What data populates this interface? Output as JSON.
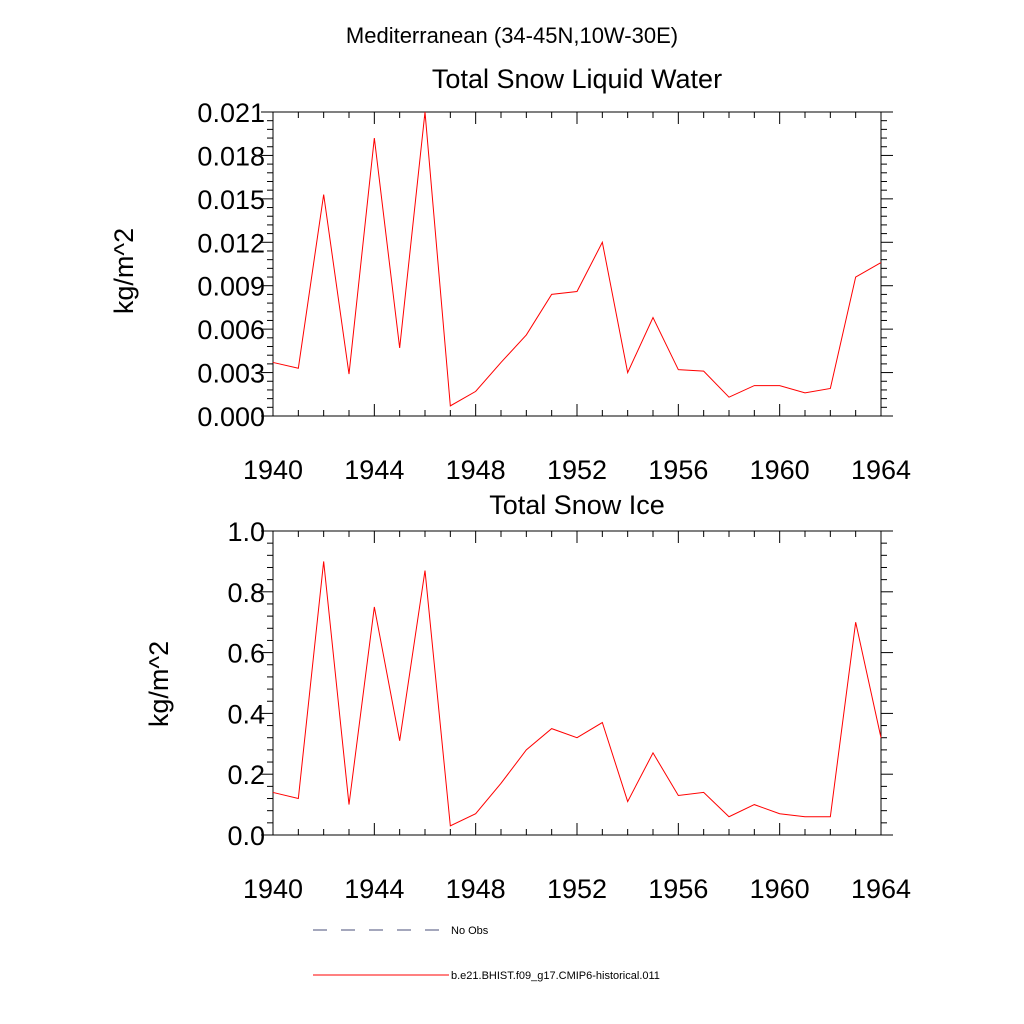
{
  "figure": {
    "title": "Mediterranean (34-45N,10W-30E)"
  },
  "chart_data": [
    {
      "type": "line",
      "title": "Total Snow Liquid Water",
      "xlabel": "",
      "ylabel": "kg/m^2",
      "xlim": [
        1940,
        1964
      ],
      "ylim": [
        0,
        0.021
      ],
      "x_ticks": [
        "1940",
        "1944",
        "1948",
        "1952",
        "1956",
        "1960",
        "1964"
      ],
      "y_ticks": [
        "0.000",
        "0.003",
        "0.006",
        "0.009",
        "0.012",
        "0.015",
        "0.018",
        "0.021"
      ],
      "grid": false,
      "x": [
        1940,
        1941,
        1942,
        1943,
        1944,
        1945,
        1946,
        1947,
        1948,
        1949,
        1950,
        1951,
        1952,
        1953,
        1954,
        1955,
        1956,
        1957,
        1958,
        1959,
        1960,
        1961,
        1962,
        1963,
        1964
      ],
      "series": [
        {
          "name": "b.e21.BHIST.f09_g17.CMIP6-historical.011",
          "color": "#ff0000",
          "values": [
            0.0037,
            0.0033,
            0.0153,
            0.0029,
            0.0192,
            0.0047,
            0.021,
            0.0007,
            0.0017,
            0.0037,
            0.0056,
            0.0084,
            0.0086,
            0.012,
            0.003,
            0.0068,
            0.0032,
            0.0031,
            0.0013,
            0.0021,
            0.0021,
            0.0016,
            0.0019,
            0.0096,
            0.0106
          ]
        }
      ]
    },
    {
      "type": "line",
      "title": "Total Snow Ice",
      "xlabel": "",
      "ylabel": "kg/m^2",
      "xlim": [
        1940,
        1964
      ],
      "ylim": [
        0,
        1.0
      ],
      "x_ticks": [
        "1940",
        "1944",
        "1948",
        "1952",
        "1956",
        "1960",
        "1964"
      ],
      "y_ticks": [
        "0.0",
        "0.2",
        "0.4",
        "0.6",
        "0.8",
        "1.0"
      ],
      "grid": false,
      "x": [
        1940,
        1941,
        1942,
        1943,
        1944,
        1945,
        1946,
        1947,
        1948,
        1949,
        1950,
        1951,
        1952,
        1953,
        1954,
        1955,
        1956,
        1957,
        1958,
        1959,
        1960,
        1961,
        1962,
        1963,
        1964
      ],
      "series": [
        {
          "name": "b.e21.BHIST.f09_g17.CMIP6-historical.011",
          "color": "#ff0000",
          "values": [
            0.14,
            0.12,
            0.9,
            0.1,
            0.75,
            0.31,
            0.87,
            0.03,
            0.07,
            0.17,
            0.28,
            0.35,
            0.32,
            0.37,
            0.11,
            0.27,
            0.13,
            0.14,
            0.06,
            0.1,
            0.07,
            0.06,
            0.06,
            0.7,
            0.32
          ]
        }
      ]
    }
  ],
  "legend": {
    "placement": "bottom",
    "items": [
      {
        "label": "No Obs",
        "color": "#4a4f7a",
        "style": "dashed"
      },
      {
        "label": "b.e21.BHIST.f09_g17.CMIP6-historical.011",
        "color": "#ff0000",
        "style": "solid"
      }
    ]
  }
}
